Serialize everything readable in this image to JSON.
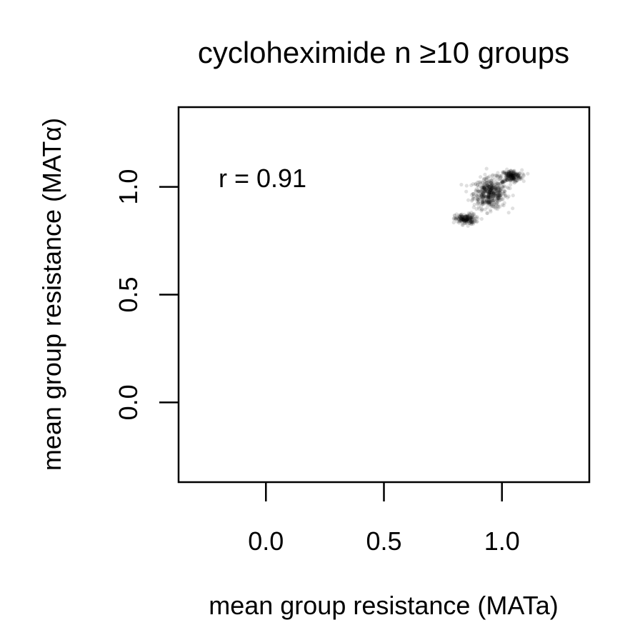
{
  "chart_data": {
    "type": "scatter",
    "title": "cycloheximide n ≥10 groups",
    "xlabel": "mean group resistance (MATa)",
    "ylabel": "mean group resistance (MATα)",
    "xlim": [
      -0.37,
      1.37
    ],
    "ylim": [
      -0.37,
      1.37
    ],
    "x_ticks": [
      0.0,
      0.5,
      1.0
    ],
    "y_ticks": [
      0.0,
      0.5,
      1.0
    ],
    "x_tick_labels": [
      "0.0",
      "0.5",
      "1.0"
    ],
    "y_tick_labels": [
      "0.0",
      "0.5",
      "1.0"
    ],
    "annotation": "r = 0.91",
    "grid": false,
    "point_color": "#000000",
    "clusters": [
      {
        "center": [
          0.95,
          0.97
        ],
        "sd_x": 0.035,
        "sd_y": 0.035,
        "count": 520
      },
      {
        "center": [
          1.04,
          1.05
        ],
        "sd_x": 0.022,
        "sd_y": 0.014,
        "count": 220
      },
      {
        "center": [
          0.845,
          0.85
        ],
        "sd_x": 0.022,
        "sd_y": 0.012,
        "count": 200
      }
    ]
  }
}
